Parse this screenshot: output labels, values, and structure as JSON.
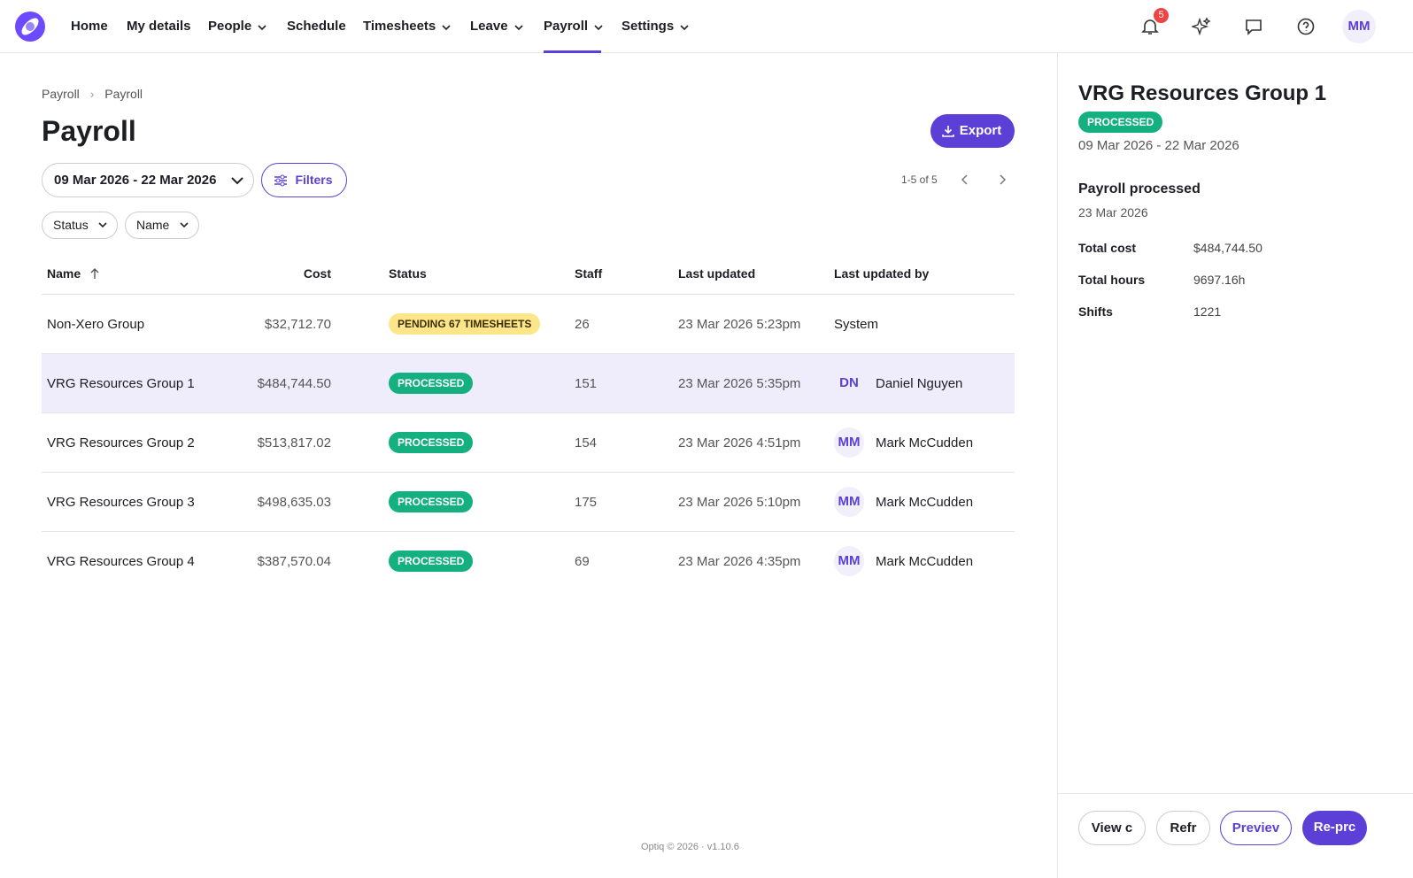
{
  "nav": {
    "items": [
      "Home",
      "My details",
      "People",
      "Schedule",
      "Timesheets",
      "Leave",
      "Payroll",
      "Settings"
    ],
    "notification_count": "5",
    "avatar": "MM"
  },
  "breadcrumb": [
    "Payroll",
    "Payroll"
  ],
  "header": {
    "title": "Payroll",
    "export": "Export"
  },
  "toolbar": {
    "date_range": "09 Mar 2026 - 22 Mar 2026",
    "filters": "Filters",
    "pagination": "1-5 of 5",
    "chips": [
      "Status",
      "Name"
    ]
  },
  "table": {
    "columns": [
      "Name",
      "Cost",
      "Status",
      "Staff",
      "Last updated",
      "Last updated by"
    ],
    "rows": [
      {
        "name": "Non-Xero Group",
        "cost": "$32,712.70",
        "status": "PENDING 67 TIMESHEETS",
        "staff": 26,
        "updated": "23 Mar 2026 5:23pm",
        "by": "System"
      },
      {
        "name": "VRG Resources Group 1",
        "cost": "$484,744.50",
        "status": "PROCESSED",
        "staff": 151,
        "updated": "23 Mar 2026 5:35pm",
        "by_initials": "DN",
        "by": "Daniel Nguyen"
      },
      {
        "name": "VRG Resources Group 2",
        "cost": "$513,817.02",
        "status": "PROCESSED",
        "staff": 154,
        "updated": "23 Mar 2026 4:51pm",
        "by_initials": "MM",
        "by": "Mark McCudden"
      },
      {
        "name": "VRG Resources Group 3",
        "cost": "$498,635.03",
        "status": "PROCESSED",
        "staff": 175,
        "updated": "23 Mar 2026 5:10pm",
        "by_initials": "MM",
        "by": "Mark McCudden"
      },
      {
        "name": "VRG Resources Group 4",
        "cost": "$387,570.04",
        "status": "PROCESSED",
        "staff": 69,
        "updated": "23 Mar 2026 4:35pm",
        "by_initials": "MM",
        "by": "Mark McCudden"
      }
    ]
  },
  "panel": {
    "title": "VRG Resources Group 1",
    "status": "PROCESSED",
    "period": "09 Mar 2026 - 22 Mar 2026",
    "event": "Payroll processed",
    "event_date": "23 Mar 2026",
    "details": [
      {
        "label": "Total cost",
        "value": "$484,744.50"
      },
      {
        "label": "Total hours",
        "value": "9697.16h"
      },
      {
        "label": "Shifts",
        "value": "1221"
      }
    ],
    "actions": [
      "View c",
      "Refr",
      "Previev",
      "Re-prc"
    ]
  },
  "footer": "Optiq © 2026 · v1.10.6"
}
